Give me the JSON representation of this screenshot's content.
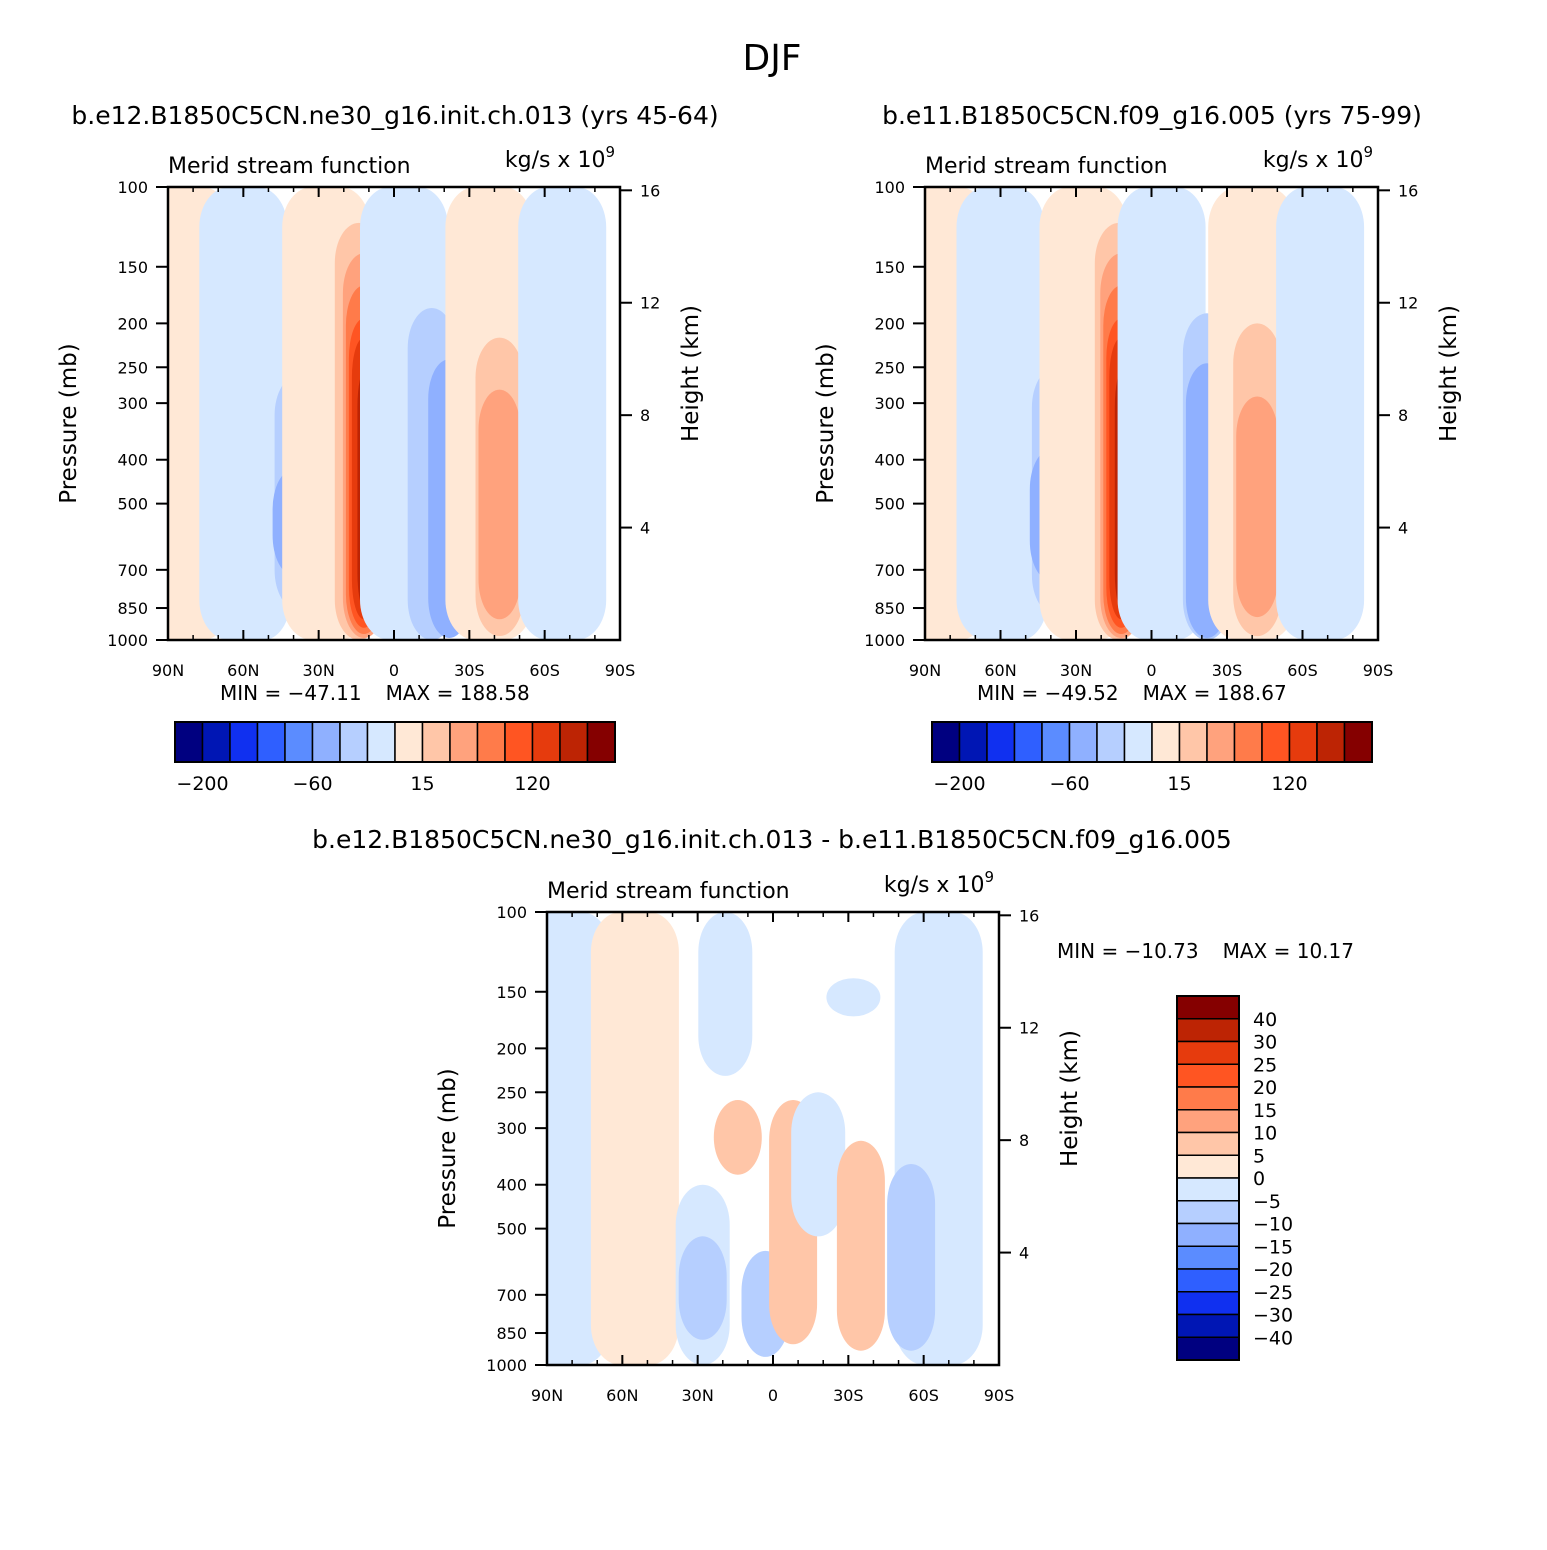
{
  "figure": {
    "title": "DJF"
  },
  "colors": {
    "positive_palette": [
      "#ffe8d6",
      "#ffc6a8",
      "#ffa27d",
      "#ff7b4a",
      "#ff5522",
      "#e63b0d",
      "#bd2404",
      "#850000"
    ],
    "negative_palette": [
      "#d6e8ff",
      "#b6cfff",
      "#8fb0ff",
      "#5b8cff",
      "#2f5fff",
      "#1030f0",
      "#0016b4",
      "#000080"
    ]
  },
  "chart_data": [
    {
      "type": "contour",
      "case_title": "b.e12.B1850C5CN.ne30_g16.init.ch.013 (yrs 45-64)",
      "subtitle_left": "Merid stream function",
      "subtitle_right": "kg/s x 10",
      "subtitle_exponent": "9",
      "ylabel": "Pressure (mb)",
      "ylabel_right": "Height (km)",
      "x_ticks": [
        "90N",
        "60N",
        "30N",
        "0",
        "30S",
        "60S",
        "90S"
      ],
      "y_ticks": [
        "100",
        "150",
        "200",
        "250",
        "300",
        "400",
        "500",
        "700",
        "850",
        "1000"
      ],
      "y_right_ticks": [
        "16",
        "12",
        "8",
        "4"
      ],
      "min_text": "MIN = -47.11",
      "max_text": "MAX = 188.58",
      "min": -47.11,
      "max": 188.58,
      "colorbar": {
        "orientation": "horizontal",
        "labels": [
          "-200",
          "-60",
          "15",
          "120"
        ],
        "levels": [
          -200,
          -150,
          -100,
          -60,
          -40,
          -30,
          -20,
          -10,
          0,
          15,
          30,
          60,
          90,
          120,
          150,
          200
        ]
      },
      "cells": [
        {
          "lat": 82,
          "top": 100,
          "bottom": 1000,
          "v": 1
        },
        {
          "lat": 60,
          "top": 100,
          "bottom": 1000,
          "v": -1
        },
        {
          "lat": 52,
          "top": 150,
          "bottom": 1000,
          "v": -1
        },
        {
          "lat": 38,
          "top": 260,
          "bottom": 860,
          "v": -2
        },
        {
          "lat": 40,
          "top": 420,
          "bottom": 720,
          "v": -3
        },
        {
          "lat": 27,
          "top": 100,
          "bottom": 1000,
          "v": 1
        },
        {
          "lat": 14,
          "top": 120,
          "bottom": 1000,
          "v": 2
        },
        {
          "lat": 12,
          "top": 140,
          "bottom": 990,
          "v": 3
        },
        {
          "lat": 12,
          "top": 165,
          "bottom": 970,
          "v": 4
        },
        {
          "lat": 12,
          "top": 195,
          "bottom": 940,
          "v": 5
        },
        {
          "lat": 12,
          "top": 215,
          "bottom": 900,
          "v": 6
        },
        {
          "lat": 11,
          "top": 250,
          "bottom": 870,
          "v": 7
        },
        {
          "lat": 11,
          "top": 290,
          "bottom": 830,
          "v": 8
        },
        {
          "lat": -4,
          "top": 100,
          "bottom": 1000,
          "v": -1
        },
        {
          "lat": -15,
          "top": 185,
          "bottom": 1000,
          "v": -2
        },
        {
          "lat": -22,
          "top": 240,
          "bottom": 990,
          "v": -3
        },
        {
          "lat": -38,
          "top": 100,
          "bottom": 1000,
          "v": 1
        },
        {
          "lat": -42,
          "top": 215,
          "bottom": 980,
          "v": 2
        },
        {
          "lat": -42,
          "top": 280,
          "bottom": 900,
          "v": 3
        },
        {
          "lat": -67,
          "top": 100,
          "bottom": 1000,
          "v": -1
        }
      ]
    },
    {
      "type": "contour",
      "case_title": "b.e11.B1850C5CN.f09_g16.005 (yrs 75-99)",
      "subtitle_left": "Merid stream function",
      "subtitle_right": "kg/s x 10",
      "subtitle_exponent": "9",
      "ylabel": "Pressure (mb)",
      "ylabel_right": "Height (km)",
      "x_ticks": [
        "90N",
        "60N",
        "30N",
        "0",
        "30S",
        "60S",
        "90S"
      ],
      "y_ticks": [
        "100",
        "150",
        "200",
        "250",
        "300",
        "400",
        "500",
        "700",
        "850",
        "1000"
      ],
      "y_right_ticks": [
        "16",
        "12",
        "8",
        "4"
      ],
      "min_text": "MIN = -49.52",
      "max_text": "MAX = 188.67",
      "min": -49.52,
      "max": 188.67,
      "colorbar": {
        "orientation": "horizontal",
        "labels": [
          "-200",
          "-60",
          "15",
          "120"
        ],
        "levels": [
          -200,
          -150,
          -100,
          -60,
          -40,
          -30,
          -20,
          -10,
          0,
          15,
          30,
          60,
          90,
          120,
          150,
          200
        ]
      },
      "cells": [
        {
          "lat": 82,
          "top": 100,
          "bottom": 1000,
          "v": 1
        },
        {
          "lat": 60,
          "top": 100,
          "bottom": 1000,
          "v": -1
        },
        {
          "lat": 52,
          "top": 150,
          "bottom": 1000,
          "v": -1
        },
        {
          "lat": 38,
          "top": 250,
          "bottom": 880,
          "v": -2
        },
        {
          "lat": 40,
          "top": 380,
          "bottom": 740,
          "v": -3
        },
        {
          "lat": 27,
          "top": 100,
          "bottom": 1000,
          "v": 1
        },
        {
          "lat": 13,
          "top": 120,
          "bottom": 1000,
          "v": 2
        },
        {
          "lat": 12,
          "top": 140,
          "bottom": 990,
          "v": 3
        },
        {
          "lat": 12,
          "top": 165,
          "bottom": 970,
          "v": 4
        },
        {
          "lat": 12,
          "top": 195,
          "bottom": 940,
          "v": 5
        },
        {
          "lat": 12,
          "top": 215,
          "bottom": 900,
          "v": 6
        },
        {
          "lat": 11,
          "top": 250,
          "bottom": 870,
          "v": 7
        },
        {
          "lat": 11,
          "top": 295,
          "bottom": 830,
          "v": 8
        },
        {
          "lat": -4,
          "top": 100,
          "bottom": 1000,
          "v": -1
        },
        {
          "lat": -22,
          "top": 190,
          "bottom": 1000,
          "v": -2
        },
        {
          "lat": -22,
          "top": 245,
          "bottom": 990,
          "v": -3
        },
        {
          "lat": -40,
          "top": 100,
          "bottom": 1000,
          "v": 1
        },
        {
          "lat": -42,
          "top": 200,
          "bottom": 980,
          "v": 2
        },
        {
          "lat": -42,
          "top": 290,
          "bottom": 890,
          "v": 3
        },
        {
          "lat": -67,
          "top": 100,
          "bottom": 1000,
          "v": -1
        }
      ]
    },
    {
      "type": "contour",
      "case_title": "b.e12.B1850C5CN.ne30_g16.init.ch.013 - b.e11.B1850C5CN.f09_g16.005",
      "subtitle_left": "Merid stream function",
      "subtitle_right": "kg/s x 10",
      "subtitle_exponent": "9",
      "ylabel": "Pressure (mb)",
      "ylabel_right": "Height (km)",
      "x_ticks": [
        "90N",
        "60N",
        "30N",
        "0",
        "30S",
        "60S",
        "90S"
      ],
      "y_ticks": [
        "100",
        "150",
        "200",
        "250",
        "300",
        "400",
        "500",
        "700",
        "850",
        "1000"
      ],
      "y_right_ticks": [
        "16",
        "12",
        "8",
        "4"
      ],
      "min_text": "MIN = -10.73",
      "max_text": "MAX =  10.17",
      "min": -10.73,
      "max": 10.17,
      "colorbar": {
        "orientation": "vertical",
        "labels": [
          "40",
          "30",
          "25",
          "20",
          "15",
          "10",
          "5",
          "0",
          "-5",
          "-10",
          "-15",
          "-20",
          "-25",
          "-30",
          "-40"
        ],
        "levels": [
          -40,
          -30,
          -25,
          -20,
          -15,
          -10,
          -5,
          0,
          5,
          10,
          15,
          20,
          25,
          30,
          40
        ]
      },
      "cells": [
        {
          "lat": 82,
          "top": 100,
          "bottom": 1000,
          "v": -1
        },
        {
          "lat": 55,
          "top": 100,
          "bottom": 1000,
          "v": 1
        },
        {
          "lat": 19,
          "top": 100,
          "bottom": 230,
          "v": -1
        },
        {
          "lat": 28,
          "top": 400,
          "bottom": 1000,
          "v": -1
        },
        {
          "lat": 28,
          "top": 520,
          "bottom": 880,
          "v": -2
        },
        {
          "lat": 3,
          "top": 560,
          "bottom": 960,
          "v": -2
        },
        {
          "lat": 14,
          "top": 260,
          "bottom": 380,
          "v": 2
        },
        {
          "lat": -8,
          "top": 260,
          "bottom": 900,
          "v": 2
        },
        {
          "lat": -18,
          "top": 250,
          "bottom": 520,
          "v": -1
        },
        {
          "lat": -32,
          "top": 140,
          "bottom": 170,
          "v": -1
        },
        {
          "lat": -35,
          "top": 320,
          "bottom": 930,
          "v": 2
        },
        {
          "lat": -66,
          "top": 100,
          "bottom": 1000,
          "v": -1
        },
        {
          "lat": -55,
          "top": 360,
          "bottom": 930,
          "v": -2
        }
      ]
    }
  ]
}
